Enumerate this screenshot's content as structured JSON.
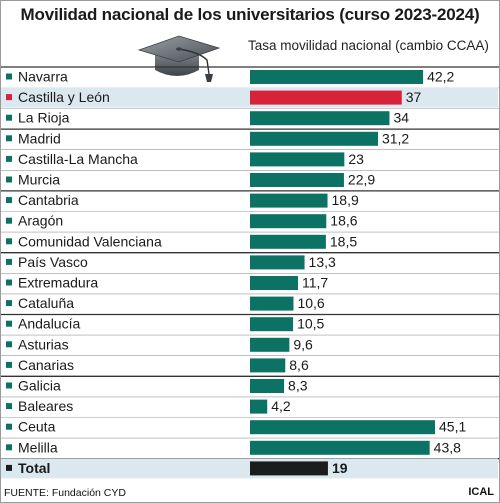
{
  "title": "Movilidad nacional de los universitarios (curso 2023-2024)",
  "subtitle": "Tasa movilidad nacional (cambio CCAA)",
  "source": "FUENTE: Fundación CYD",
  "brand": "ICAL",
  "colors": {
    "bar": "#0b7264",
    "highlight": "#d6233a",
    "total": "#1c1c1c",
    "highlight_row_bg": "#dce8ef",
    "divider": "#333333"
  },
  "chart_data": {
    "type": "bar",
    "orientation": "horizontal",
    "categories": [
      "Navarra",
      "Castilla y León",
      "La Rioja",
      "Madrid",
      "Castilla-La Mancha",
      "Murcia",
      "Cantabria",
      "Aragón",
      "Comunidad Valenciana",
      "País Vasco",
      "Extremadura",
      "Cataluña",
      "Andalucía",
      "Asturias",
      "Canarias",
      "Galicia",
      "Baleares",
      "Ceuta",
      "Melilla",
      "Total"
    ],
    "values": [
      42.2,
      37,
      34,
      31.2,
      23,
      22.9,
      18.9,
      18.6,
      18.5,
      13.3,
      11.7,
      10.6,
      10.5,
      9.6,
      8.6,
      8.3,
      4.2,
      45.1,
      43.8,
      19
    ],
    "value_labels": [
      "42,2",
      "37",
      "34",
      "31,2",
      "23",
      "22,9",
      "18,9",
      "18,6",
      "18,5",
      "13,3",
      "11,7",
      "10,6",
      "10,5",
      "9,6",
      "8,6",
      "8,3",
      "4,2",
      "45,1",
      "43,8",
      "19"
    ],
    "highlight": "Castilla y León",
    "total_category": "Total",
    "group_breaks_after": [
      "La Rioja",
      "Murcia",
      "Comunidad Valenciana",
      "Cataluña",
      "Canarias",
      "Melilla"
    ],
    "xlim": [
      0,
      47
    ],
    "grid": false
  }
}
